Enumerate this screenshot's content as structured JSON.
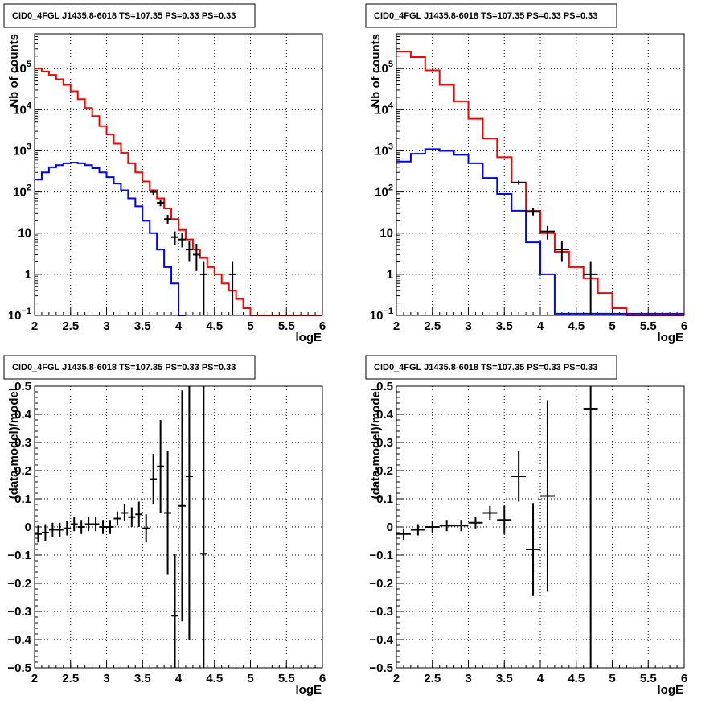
{
  "chart_data": [
    {
      "type": "line",
      "title": "CID0_4FGL J1435.8-6018 TS=107.35 PS=0.33 PS=0.33",
      "xlabel": "logE",
      "ylabel": "Nb of counts",
      "xlim": [
        2,
        6
      ],
      "ylim": [
        0.1,
        700000
      ],
      "yscale": "log",
      "grid": true,
      "xticks": [
        "2",
        "2.5",
        "3",
        "3.5",
        "4",
        "4.5",
        "5",
        "5.5",
        "6"
      ],
      "yticks": [
        {
          "v": 0.1,
          "base": "10",
          "exp": "−1"
        },
        {
          "v": 1,
          "label": "1"
        },
        {
          "v": 10,
          "label": "10"
        },
        {
          "v": 100,
          "base": "10",
          "exp": "2"
        },
        {
          "v": 1000,
          "base": "10",
          "exp": "3"
        },
        {
          "v": 10000,
          "base": "10",
          "exp": "4"
        },
        {
          "v": 100000,
          "base": "10",
          "exp": "5"
        }
      ],
      "bin_width": 0.1,
      "series": [
        {
          "color": "#ff0000",
          "x": [
            2.0,
            2.1,
            2.2,
            2.3,
            2.4,
            2.5,
            2.6,
            2.7,
            2.8,
            2.9,
            3.0,
            3.1,
            3.2,
            3.3,
            3.4,
            3.5,
            3.6,
            3.7,
            3.8,
            3.9,
            4.0,
            4.1,
            4.2,
            4.3,
            4.4,
            4.5,
            4.6,
            4.7,
            4.8,
            4.9,
            5.0,
            5.1,
            5.2,
            5.3,
            5.4,
            5.5,
            5.6,
            5.7,
            5.8,
            5.9
          ],
          "values": [
            100000,
            85000,
            70000,
            55000,
            40000,
            28000,
            18000,
            11000,
            7000,
            4000,
            2500,
            1500,
            900,
            500,
            300,
            180,
            110,
            70,
            40,
            22,
            12,
            7,
            4,
            2.5,
            1.5,
            1,
            0.6,
            0.4,
            0.25,
            0.15,
            0.1,
            0.1,
            0.1,
            0.1,
            0.1,
            0.1,
            0.1,
            0.1,
            0.1,
            0.1
          ]
        },
        {
          "color": "#0000ff",
          "x": [
            2.0,
            2.1,
            2.2,
            2.3,
            2.4,
            2.5,
            2.6,
            2.7,
            2.8,
            2.9,
            3.0,
            3.1,
            3.2,
            3.3,
            3.4,
            3.5,
            3.6,
            3.7,
            3.8,
            3.9,
            4.0
          ],
          "values": [
            200,
            300,
            400,
            450,
            500,
            520,
            500,
            450,
            380,
            300,
            230,
            160,
            110,
            70,
            45,
            20,
            10,
            4,
            1.5,
            0.6,
            0.1
          ]
        }
      ],
      "points": [
        {
          "x": 3.65,
          "y": 100,
          "lo": 85,
          "hi": 115
        },
        {
          "x": 3.75,
          "y": 55,
          "lo": 45,
          "hi": 66
        },
        {
          "x": 3.85,
          "y": 22,
          "lo": 17,
          "hi": 28
        },
        {
          "x": 3.95,
          "y": 8,
          "lo": 5.2,
          "hi": 11
        },
        {
          "x": 4.05,
          "y": 7,
          "lo": 4.5,
          "hi": 10
        },
        {
          "x": 4.15,
          "y": 4,
          "lo": 2,
          "hi": 6.5
        },
        {
          "x": 4.25,
          "y": 3,
          "lo": 1.2,
          "hi": 5.5
        },
        {
          "x": 4.35,
          "y": 1,
          "lo": 0.1,
          "hi": 2
        },
        {
          "x": 4.75,
          "y": 1,
          "lo": 0.1,
          "hi": 2
        }
      ]
    },
    {
      "type": "line",
      "title": "CID0_4FGL J1435.8-6018 TS=107.35 PS=0.33 PS=0.33",
      "xlabel": "logE",
      "ylabel": "Nb of counts",
      "xlim": [
        2,
        6
      ],
      "ylim": [
        0.1,
        700000
      ],
      "yscale": "log",
      "grid": true,
      "xticks": [
        "2",
        "2.5",
        "3",
        "3.5",
        "4",
        "4.5",
        "5",
        "5.5",
        "6"
      ],
      "yticks": [
        {
          "v": 0.1,
          "base": "10",
          "exp": "−1"
        },
        {
          "v": 1,
          "label": "1"
        },
        {
          "v": 10,
          "label": "10"
        },
        {
          "v": 100,
          "base": "10",
          "exp": "2"
        },
        {
          "v": 1000,
          "base": "10",
          "exp": "3"
        },
        {
          "v": 10000,
          "base": "10",
          "exp": "4"
        },
        {
          "v": 100000,
          "base": "10",
          "exp": "5"
        }
      ],
      "bin_width": 0.2,
      "series": [
        {
          "color": "#ff0000",
          "x": [
            2.0,
            2.2,
            2.4,
            2.6,
            2.8,
            3.0,
            3.2,
            3.4,
            3.6,
            3.8,
            4.0,
            4.2,
            4.4,
            4.6,
            4.8,
            5.0,
            5.2,
            5.4,
            5.6,
            5.8
          ],
          "values": [
            260000,
            190000,
            90000,
            40000,
            16000,
            6000,
            2000,
            700,
            170,
            35,
            10,
            3.5,
            1.5,
            0.8,
            0.35,
            0.15,
            0.1,
            0.1,
            0.1,
            0.1
          ]
        },
        {
          "color": "#0000ff",
          "x": [
            2.0,
            2.2,
            2.4,
            2.6,
            2.8,
            3.0,
            3.2,
            3.4,
            3.6,
            3.8,
            4.0,
            4.2,
            4.4,
            4.6,
            4.8,
            5.0,
            5.2,
            5.4,
            5.6,
            5.8
          ],
          "values": [
            550,
            850,
            1100,
            1000,
            800,
            500,
            220,
            90,
            35,
            6,
            1,
            0.11,
            0.11,
            0.11,
            0.11,
            0.11,
            0.11,
            0.11,
            0.11,
            0.11
          ]
        }
      ],
      "points": [
        {
          "x": 3.7,
          "y": 170,
          "lo": 150,
          "hi": 190
        },
        {
          "x": 3.9,
          "y": 33,
          "lo": 27,
          "hi": 40
        },
        {
          "x": 4.1,
          "y": 11,
          "lo": 7,
          "hi": 15
        },
        {
          "x": 4.3,
          "y": 4,
          "lo": 2,
          "hi": 6.5
        },
        {
          "x": 4.7,
          "y": 1,
          "lo": 0.1,
          "hi": 2
        }
      ]
    },
    {
      "type": "scatter",
      "title": "CID0_4FGL J1435.8-6018 TS=107.35 PS=0.33 PS=0.33",
      "xlabel": "logE",
      "ylabel": "(data-model)/model",
      "xlim": [
        2,
        6
      ],
      "ylim": [
        -0.5,
        0.5
      ],
      "grid": true,
      "xticks": [
        "2",
        "2.5",
        "3",
        "3.5",
        "4",
        "4.5",
        "5",
        "5.5",
        "6"
      ],
      "yticks": [
        "−0.5",
        "−0.4",
        "−0.3",
        "−0.2",
        "−0.1",
        "0",
        "0.1",
        "0.2",
        "0.3",
        "0.4",
        "0.5"
      ],
      "bin_width": 0.1,
      "points": [
        {
          "x": 2.05,
          "y": -0.025,
          "e": 0.03
        },
        {
          "x": 2.15,
          "y": -0.02,
          "e": 0.03
        },
        {
          "x": 2.25,
          "y": -0.01,
          "e": 0.025
        },
        {
          "x": 2.35,
          "y": -0.01,
          "e": 0.025
        },
        {
          "x": 2.45,
          "y": -0.005,
          "e": 0.025
        },
        {
          "x": 2.55,
          "y": 0.01,
          "e": 0.025
        },
        {
          "x": 2.65,
          "y": 0.0,
          "e": 0.025
        },
        {
          "x": 2.75,
          "y": 0.01,
          "e": 0.025
        },
        {
          "x": 2.85,
          "y": 0.01,
          "e": 0.025
        },
        {
          "x": 2.95,
          "y": 0.0,
          "e": 0.025
        },
        {
          "x": 3.05,
          "y": 0.0,
          "e": 0.025
        },
        {
          "x": 3.15,
          "y": 0.03,
          "e": 0.025
        },
        {
          "x": 3.25,
          "y": 0.05,
          "e": 0.03
        },
        {
          "x": 3.35,
          "y": 0.035,
          "e": 0.035
        },
        {
          "x": 3.45,
          "y": 0.045,
          "e": 0.045
        },
        {
          "x": 3.55,
          "y": -0.005,
          "e": 0.05
        },
        {
          "x": 3.65,
          "y": 0.17,
          "e": 0.09
        },
        {
          "x": 3.75,
          "y": 0.215,
          "e": 0.165
        },
        {
          "x": 3.85,
          "y": 0.05,
          "e": 0.22
        },
        {
          "x": 3.95,
          "y": -0.315,
          "e": 0.22
        },
        {
          "x": 4.05,
          "y": 0.075,
          "e": 0.41
        },
        {
          "x": 4.15,
          "y": 0.18,
          "e": 0.58
        },
        {
          "x": 4.35,
          "y": -0.095,
          "e": 0.9
        }
      ]
    },
    {
      "type": "scatter",
      "title": "CID0_4FGL J1435.8-6018 TS=107.35 PS=0.33 PS=0.33",
      "xlabel": "logE",
      "ylabel": "(data-model)/model",
      "xlim": [
        2,
        6
      ],
      "ylim": [
        -0.5,
        0.5
      ],
      "grid": true,
      "xticks": [
        "2",
        "2.5",
        "3",
        "3.5",
        "4",
        "4.5",
        "5",
        "5.5",
        "6"
      ],
      "yticks": [
        "−0.5",
        "−0.4",
        "−0.3",
        "−0.2",
        "−0.1",
        "0",
        "0.1",
        "0.2",
        "0.3",
        "0.4",
        "0.5"
      ],
      "bin_width": 0.2,
      "points": [
        {
          "x": 2.1,
          "y": -0.025,
          "e": 0.02
        },
        {
          "x": 2.3,
          "y": -0.01,
          "e": 0.02
        },
        {
          "x": 2.5,
          "y": 0.0,
          "e": 0.02
        },
        {
          "x": 2.7,
          "y": 0.005,
          "e": 0.02
        },
        {
          "x": 2.9,
          "y": 0.005,
          "e": 0.02
        },
        {
          "x": 3.1,
          "y": 0.015,
          "e": 0.02
        },
        {
          "x": 3.3,
          "y": 0.05,
          "e": 0.025
        },
        {
          "x": 3.5,
          "y": 0.025,
          "e": 0.05
        },
        {
          "x": 3.7,
          "y": 0.18,
          "e": 0.09
        },
        {
          "x": 3.9,
          "y": -0.08,
          "e": 0.165
        },
        {
          "x": 4.1,
          "y": 0.11,
          "e": 0.34
        },
        {
          "x": 4.7,
          "y": 0.42,
          "e": 0.95
        }
      ]
    }
  ]
}
